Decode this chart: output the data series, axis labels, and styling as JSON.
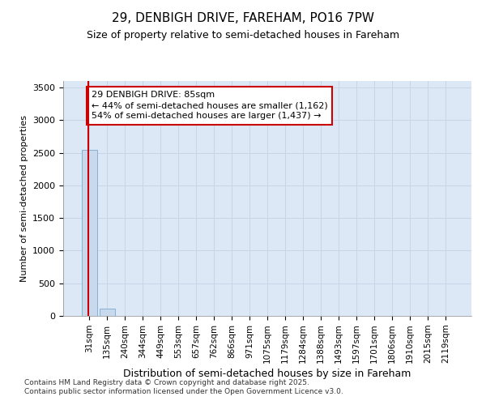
{
  "title": "29, DENBIGH DRIVE, FAREHAM, PO16 7PW",
  "subtitle": "Size of property relative to semi-detached houses in Fareham",
  "xlabel": "Distribution of semi-detached houses by size in Fareham",
  "ylabel": "Number of semi-detached properties",
  "categories": [
    "31sqm",
    "135sqm",
    "240sqm",
    "344sqm",
    "449sqm",
    "553sqm",
    "657sqm",
    "762sqm",
    "866sqm",
    "971sqm",
    "1075sqm",
    "1179sqm",
    "1284sqm",
    "1388sqm",
    "1493sqm",
    "1597sqm",
    "1701sqm",
    "1806sqm",
    "1910sqm",
    "2015sqm",
    "2119sqm"
  ],
  "values": [
    2550,
    115,
    3,
    1,
    0,
    0,
    0,
    0,
    0,
    0,
    0,
    0,
    0,
    0,
    0,
    0,
    0,
    0,
    0,
    0,
    0
  ],
  "bar_color": "#c8d8ed",
  "bar_edge_color": "#7aaad0",
  "ylim": [
    0,
    3600
  ],
  "yticks": [
    0,
    500,
    1000,
    1500,
    2000,
    2500,
    3000,
    3500
  ],
  "property_sqm": 85,
  "pct_smaller": 44,
  "count_smaller": 1162,
  "pct_larger": 54,
  "count_larger": 1437,
  "annotation_box_color": "#cc0000",
  "grid_color": "#c8d4e8",
  "bg_color": "#dce8f5",
  "title_fontsize": 11,
  "subtitle_fontsize": 9,
  "footer_line1": "Contains HM Land Registry data © Crown copyright and database right 2025.",
  "footer_line2": "Contains public sector information licensed under the Open Government Licence v3.0."
}
